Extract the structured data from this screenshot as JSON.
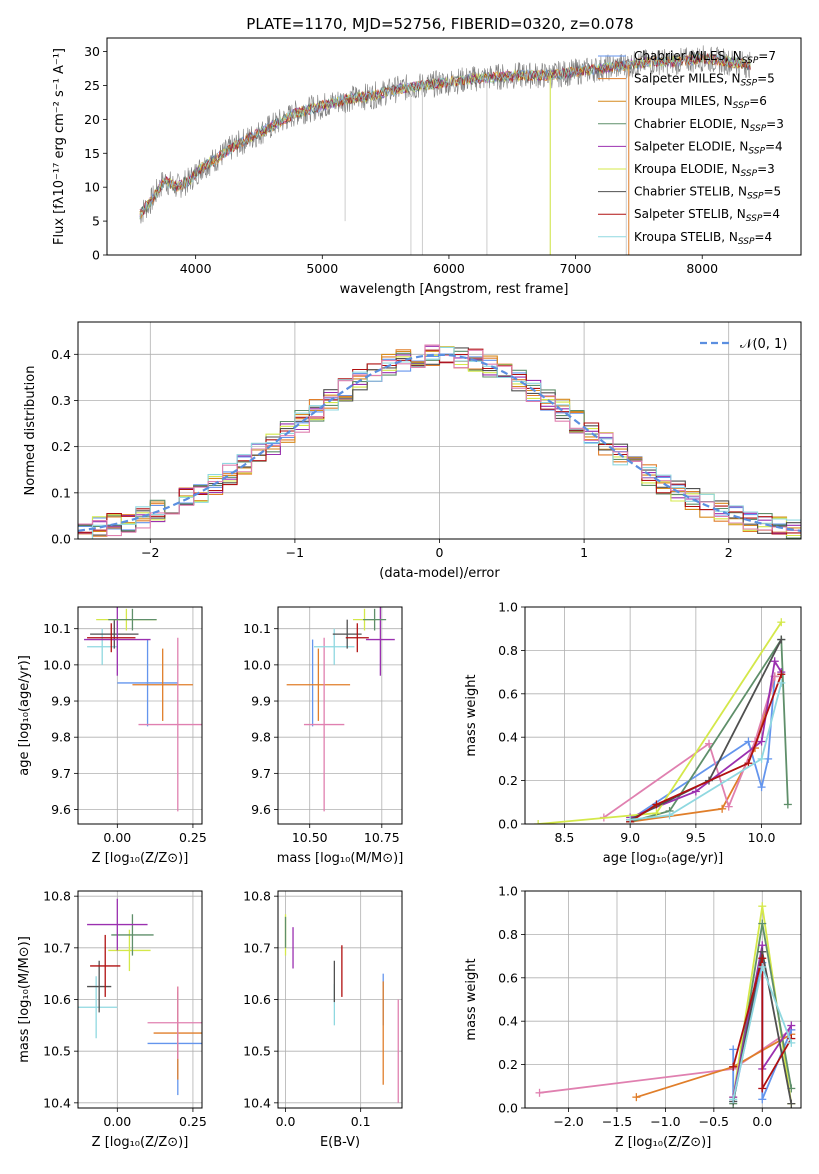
{
  "colors": {
    "s1": "#6495ed",
    "s2": "#e07e2a",
    "s3": "#d68a1e",
    "s4": "#5f8f6a",
    "s5": "#9b30b0",
    "s6": "#d4e84a",
    "s7": "#505050",
    "s8": "#b01010",
    "s9": "#8fd8e0",
    "s10": "#e080b0",
    "gaussian": "#5b8fe0"
  },
  "chart_data": [
    {
      "id": "spectrum",
      "type": "line",
      "title": "PLATE=1170, MJD=52756, FIBERID=0320, z=0.078",
      "xlabel": "wavelength [Angstrom, rest frame]",
      "ylabel": "Flux [fλ10⁻¹⁷ erg cm⁻² s⁻¹ A⁻¹]",
      "xlim": [
        3300,
        8780
      ],
      "ylim": [
        0,
        32
      ],
      "xticks": [
        "4000",
        "5000",
        "6000",
        "7000",
        "8000"
      ],
      "yticks": [
        "0",
        "5",
        "10",
        "15",
        "20",
        "25",
        "30"
      ],
      "grid": false,
      "legend_position": "right",
      "series": [
        {
          "name": "Chabrier MILES, N_SSP=7",
          "color_key": "s1"
        },
        {
          "name": "Salpeter MILES, N_SSP=5",
          "color_key": "s2"
        },
        {
          "name": "Kroupa MILES, N_SSP=6",
          "color_key": "s3"
        },
        {
          "name": "Chabrier ELODIE, N_SSP=3",
          "color_key": "s4"
        },
        {
          "name": "Salpeter ELODIE, N_SSP=4",
          "color_key": "s5"
        },
        {
          "name": "Kroupa ELODIE, N_SSP=3",
          "color_key": "s6"
        },
        {
          "name": "Chabrier STELIB, N_SSP=5",
          "color_key": "s7"
        },
        {
          "name": "Salpeter STELIB, N_SSP=4",
          "color_key": "s8"
        },
        {
          "name": "Kroupa STELIB, N_SSP=4",
          "color_key": "s9"
        }
      ],
      "continuum": [
        [
          3560,
          6
        ],
        [
          3650,
          8
        ],
        [
          3750,
          11
        ],
        [
          3850,
          10
        ],
        [
          3950,
          11
        ],
        [
          4050,
          13
        ],
        [
          4150,
          14
        ],
        [
          4300,
          16
        ],
        [
          4450,
          17.5
        ],
        [
          4600,
          19
        ],
        [
          4800,
          21
        ],
        [
          5000,
          22
        ],
        [
          5200,
          23
        ],
        [
          5400,
          23.5
        ],
        [
          5600,
          24.5
        ],
        [
          5800,
          25
        ],
        [
          6000,
          25.5
        ],
        [
          6200,
          26
        ],
        [
          6400,
          26.3
        ],
        [
          6600,
          26.5
        ],
        [
          6800,
          26.5
        ],
        [
          7000,
          27
        ],
        [
          7200,
          27.5
        ],
        [
          7400,
          28
        ],
        [
          7600,
          28.5
        ],
        [
          7800,
          28.5
        ],
        [
          8000,
          29
        ],
        [
          8200,
          28.5
        ],
        [
          8380,
          28
        ]
      ]
    },
    {
      "id": "residuals",
      "type": "line",
      "xlabel": "(data-model)/error",
      "ylabel": "Normed distribution",
      "xlim": [
        -2.5,
        2.5
      ],
      "ylim": [
        0,
        0.47
      ],
      "xticks": [
        "−2",
        "−1",
        "0",
        "1",
        "2"
      ],
      "yticks": [
        "0.0",
        "0.1",
        "0.2",
        "0.3",
        "0.4"
      ],
      "grid": true,
      "legend_position": "top-right",
      "legend": [
        "𝒩(0, 1)"
      ],
      "gaussian": {
        "mean": 0,
        "sigma": 1
      }
    },
    {
      "id": "age-vs-Z",
      "type": "scatter",
      "xlabel": "Z [log₁₀(Z/Z⊙)]",
      "ylabel": "age  [log₁₀(age/yr)]",
      "xlim": [
        -0.13,
        0.28
      ],
      "ylim": [
        9.56,
        10.16
      ],
      "xticks": [
        "0.00",
        "0.25"
      ],
      "yticks": [
        "9.6",
        "9.7",
        "9.8",
        "9.9",
        "10.0",
        "10.1"
      ],
      "grid": true,
      "errorbars": [
        {
          "color_key": "s1",
          "x": 0.1,
          "y": 9.95,
          "xerr": 0.1,
          "yerr": 0.12
        },
        {
          "color_key": "s2",
          "x": 0.15,
          "y": 9.945,
          "xerr": 0.1,
          "yerr": 0.1
        },
        {
          "color_key": "s10",
          "x": 0.2,
          "y": 9.835,
          "xerr": 0.13,
          "yerr": 0.24
        },
        {
          "color_key": "s9",
          "x": -0.05,
          "y": 10.05,
          "xerr": 0.05,
          "yerr": 0.05
        },
        {
          "color_key": "s7",
          "x": -0.01,
          "y": 10.085,
          "xerr": 0.08,
          "yerr": 0.04
        },
        {
          "color_key": "s5",
          "x": 0.0,
          "y": 10.07,
          "xerr": 0.11,
          "yerr": 0.1
        },
        {
          "color_key": "s8",
          "x": -0.02,
          "y": 10.075,
          "xerr": 0.08,
          "yerr": 0.04
        },
        {
          "color_key": "s6",
          "x": 0.03,
          "y": 10.125,
          "xerr": 0.1,
          "yerr": 0.03
        },
        {
          "color_key": "s4",
          "x": 0.05,
          "y": 10.125,
          "xerr": 0.08,
          "yerr": 0.03
        }
      ]
    },
    {
      "id": "age-vs-mass",
      "type": "scatter",
      "xlabel": "mass [log₁₀(M/M⊙)]",
      "ylabel": "",
      "xlim": [
        10.39,
        10.82
      ],
      "ylim": [
        9.56,
        10.16
      ],
      "xticks": [
        "10.50",
        "10.75"
      ],
      "yticks": [
        "9.6",
        "9.7",
        "9.8",
        "9.9",
        "10.0",
        "10.1"
      ],
      "grid": true,
      "errorbars": [
        {
          "color_key": "s1",
          "x": 10.51,
          "y": 9.95,
          "xerr": 0.0,
          "yerr": 0.12
        },
        {
          "color_key": "s2",
          "x": 10.53,
          "y": 9.945,
          "xerr": 0.11,
          "yerr": 0.1
        },
        {
          "color_key": "s10",
          "x": 10.55,
          "y": 9.835,
          "xerr": 0.07,
          "yerr": 0.24
        },
        {
          "color_key": "s9",
          "x": 10.585,
          "y": 10.05,
          "xerr": 0.07,
          "yerr": 0.05
        },
        {
          "color_key": "s7",
          "x": 10.63,
          "y": 10.085,
          "xerr": 0.05,
          "yerr": 0.04
        },
        {
          "color_key": "s5",
          "x": 10.745,
          "y": 10.07,
          "xerr": 0.05,
          "yerr": 0.1
        },
        {
          "color_key": "s8",
          "x": 10.665,
          "y": 10.075,
          "xerr": 0.04,
          "yerr": 0.04
        },
        {
          "color_key": "s6",
          "x": 10.69,
          "y": 10.125,
          "xerr": 0.04,
          "yerr": 0.03
        },
        {
          "color_key": "s4",
          "x": 10.725,
          "y": 10.125,
          "xerr": 0.04,
          "yerr": 0.03
        }
      ]
    },
    {
      "id": "weight-vs-age",
      "type": "line",
      "xlabel": "age  [log₁₀(age/yr)]",
      "ylabel": "mass weight",
      "xlim": [
        8.2,
        10.3
      ],
      "ylim": [
        0,
        1.0
      ],
      "xticks": [
        "8.5",
        "9.0",
        "9.5",
        "10.0"
      ],
      "yticks": [
        "0.0",
        "0.2",
        "0.4",
        "0.6",
        "0.8",
        "1.0"
      ],
      "grid": true,
      "series": [
        {
          "color_key": "s1",
          "points": [
            [
              9.0,
              0.02
            ],
            [
              9.9,
              0.38
            ],
            [
              10.0,
              0.17
            ],
            [
              10.05,
              0.3
            ],
            [
              10.1,
              0.68
            ]
          ]
        },
        {
          "color_key": "s2",
          "points": [
            [
              9.0,
              0.01
            ],
            [
              9.7,
              0.07
            ],
            [
              9.95,
              0.35
            ],
            [
              10.1,
              0.68
            ]
          ]
        },
        {
          "color_key": "s10",
          "points": [
            [
              8.8,
              0.03
            ],
            [
              9.6,
              0.37
            ],
            [
              9.75,
              0.08
            ],
            [
              9.95,
              0.38
            ],
            [
              10.1,
              0.68
            ]
          ]
        },
        {
          "color_key": "s4",
          "points": [
            [
              9.0,
              0.01
            ],
            [
              9.3,
              0.06
            ],
            [
              10.15,
              0.85
            ],
            [
              10.2,
              0.09
            ]
          ]
        },
        {
          "color_key": "s5",
          "points": [
            [
              9.0,
              0.03
            ],
            [
              9.5,
              0.15
            ],
            [
              10.0,
              0.38
            ],
            [
              10.1,
              0.75
            ],
            [
              10.15,
              0.7
            ]
          ]
        },
        {
          "color_key": "s6",
          "points": [
            [
              8.3,
              0.0
            ],
            [
              9.2,
              0.05
            ],
            [
              10.15,
              0.93
            ]
          ]
        },
        {
          "color_key": "s7",
          "points": [
            [
              9.0,
              0.02
            ],
            [
              9.6,
              0.2
            ],
            [
              10.15,
              0.85
            ]
          ]
        },
        {
          "color_key": "s8",
          "points": [
            [
              9.0,
              0.01
            ],
            [
              9.2,
              0.09
            ],
            [
              9.9,
              0.28
            ],
            [
              10.15,
              0.69
            ]
          ]
        },
        {
          "color_key": "s9",
          "points": [
            [
              9.0,
              0.02
            ],
            [
              9.3,
              0.04
            ],
            [
              10.0,
              0.3
            ],
            [
              10.15,
              0.65
            ]
          ]
        }
      ]
    },
    {
      "id": "mass-vs-Z",
      "type": "scatter",
      "xlabel": "Z [log₁₀(Z/Z⊙)]",
      "ylabel": "mass [log₁₀(M/M⊙)]",
      "xlim": [
        -0.13,
        0.28
      ],
      "ylim": [
        10.39,
        10.81
      ],
      "xticks": [
        "0.00",
        "0.25"
      ],
      "yticks": [
        "10.4",
        "10.5",
        "10.6",
        "10.7",
        "10.8"
      ],
      "grid": true,
      "errorbars": [
        {
          "color_key": "s1",
          "x": 0.2,
          "y": 10.515,
          "xerr": 0.1,
          "yerr": 0.1
        },
        {
          "color_key": "s2",
          "x": 0.2,
          "y": 10.535,
          "xerr": 0.08,
          "yerr": 0.09
        },
        {
          "color_key": "s10",
          "x": 0.2,
          "y": 10.555,
          "xerr": 0.1,
          "yerr": 0.07
        },
        {
          "color_key": "s9",
          "x": -0.07,
          "y": 10.585,
          "xerr": 0.07,
          "yerr": 0.06
        },
        {
          "color_key": "s7",
          "x": -0.06,
          "y": 10.625,
          "xerr": 0.04,
          "yerr": 0.05
        },
        {
          "color_key": "s8",
          "x": -0.04,
          "y": 10.665,
          "xerr": 0.05,
          "yerr": 0.06
        },
        {
          "color_key": "s6",
          "x": 0.04,
          "y": 10.695,
          "xerr": 0.07,
          "yerr": 0.04
        },
        {
          "color_key": "s4",
          "x": 0.05,
          "y": 10.725,
          "xerr": 0.07,
          "yerr": 0.04
        },
        {
          "color_key": "s5",
          "x": 0.0,
          "y": 10.745,
          "xerr": 0.1,
          "yerr": 0.05
        }
      ]
    },
    {
      "id": "mass-vs-EBV",
      "type": "scatter",
      "xlabel": "E(B-V)",
      "ylabel": "",
      "xlim": [
        -0.01,
        0.155
      ],
      "ylim": [
        10.39,
        10.81
      ],
      "xticks": [
        "0.0",
        "0.1"
      ],
      "yticks": [
        "10.4",
        "10.5",
        "10.6",
        "10.7",
        "10.8"
      ],
      "grid": true,
      "errorbars": [
        {
          "color_key": "s6",
          "x": 0.0,
          "y": 10.725,
          "xerr": 0,
          "yerr": 0.04
        },
        {
          "color_key": "s4",
          "x": 0.0,
          "y": 10.73,
          "xerr": 0,
          "yerr": 0.03
        },
        {
          "color_key": "s5",
          "x": 0.01,
          "y": 10.7,
          "xerr": 0,
          "yerr": 0.04
        },
        {
          "color_key": "s9",
          "x": 0.065,
          "y": 10.59,
          "xerr": 0,
          "yerr": 0.04
        },
        {
          "color_key": "s7",
          "x": 0.065,
          "y": 10.635,
          "xerr": 0,
          "yerr": 0.04
        },
        {
          "color_key": "s8",
          "x": 0.075,
          "y": 10.655,
          "xerr": 0,
          "yerr": 0.05
        },
        {
          "color_key": "s1",
          "x": 0.13,
          "y": 10.6,
          "xerr": 0,
          "yerr": 0.05
        },
        {
          "color_key": "s2",
          "x": 0.13,
          "y": 10.535,
          "xerr": 0,
          "yerr": 0.1
        },
        {
          "color_key": "s10",
          "x": 0.15,
          "y": 10.5,
          "xerr": 0,
          "yerr": 0.1
        }
      ]
    },
    {
      "id": "weight-vs-Z",
      "type": "line",
      "xlabel": "Z [log₁₀(Z/Z⊙)]",
      "ylabel": "mass weight",
      "xlim": [
        -2.45,
        0.4
      ],
      "ylim": [
        0,
        1.0
      ],
      "xticks": [
        "−2.0",
        "−1.5",
        "−1.0",
        "−0.5",
        "0.0"
      ],
      "yticks": [
        "0.0",
        "0.2",
        "0.4",
        "0.6",
        "0.8",
        "1.0"
      ],
      "grid": true,
      "series": [
        {
          "color_key": "s10",
          "points": [
            [
              -2.3,
              0.07
            ],
            [
              -0.3,
              0.18
            ],
            [
              0.3,
              0.36
            ]
          ]
        },
        {
          "color_key": "s2",
          "points": [
            [
              -1.3,
              0.05
            ],
            [
              -0.3,
              0.19
            ],
            [
              0.3,
              0.34
            ]
          ]
        },
        {
          "color_key": "s1",
          "points": [
            [
              -0.3,
              0.27
            ],
            [
              -0.3,
              0.03
            ],
            [
              0.0,
              0.67
            ],
            [
              0.0,
              0.04
            ],
            [
              0.3,
              0.36
            ]
          ]
        },
        {
          "color_key": "s6",
          "points": [
            [
              -0.3,
              0.05
            ],
            [
              0.0,
              0.93
            ],
            [
              0.3,
              0.02
            ]
          ]
        },
        {
          "color_key": "s4",
          "points": [
            [
              -0.3,
              0.02
            ],
            [
              0.0,
              0.85
            ],
            [
              0.3,
              0.09
            ]
          ]
        },
        {
          "color_key": "s5",
          "points": [
            [
              -0.3,
              0.05
            ],
            [
              0.0,
              0.75
            ],
            [
              0.0,
              0.18
            ],
            [
              0.3,
              0.38
            ]
          ]
        },
        {
          "color_key": "s7",
          "points": [
            [
              -0.3,
              0.03
            ],
            [
              0.0,
              0.72
            ],
            [
              0.3,
              0.02
            ]
          ]
        },
        {
          "color_key": "s8",
          "points": [
            [
              -0.3,
              0.19
            ],
            [
              0.0,
              0.69
            ],
            [
              0.0,
              0.09
            ],
            [
              0.3,
              0.32
            ]
          ]
        },
        {
          "color_key": "s9",
          "points": [
            [
              -0.3,
              0.04
            ],
            [
              0.0,
              0.65
            ],
            [
              0.3,
              0.3
            ]
          ]
        }
      ]
    }
  ]
}
